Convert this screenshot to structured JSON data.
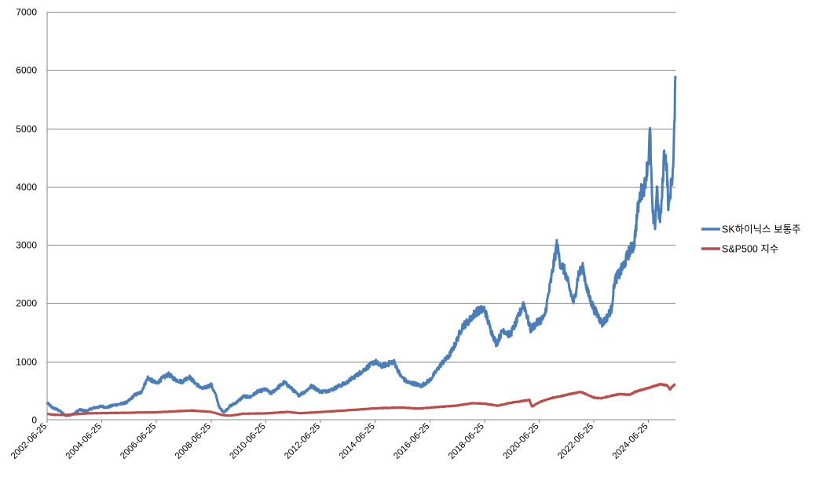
{
  "chart_data": {
    "type": "line",
    "title": "",
    "xlabel": "",
    "ylabel": "",
    "ylim": [
      0,
      7000
    ],
    "xlim": [
      "2002-06-25",
      "2025-06-20"
    ],
    "y_ticks": [
      "0",
      "1000",
      "2000",
      "3000",
      "4000",
      "5000",
      "6000",
      "7000"
    ],
    "x_ticks": [
      "2002-06-25",
      "2004-06-25",
      "2006-06-25",
      "2008-06-25",
      "2010-06-25",
      "2012-06-25",
      "2014-06-25",
      "2016-06-25",
      "2018-06-25",
      "2020-06-25",
      "2022-06-25",
      "2024-06-25"
    ],
    "grid": true,
    "legend_position": "right",
    "series": [
      {
        "name": "SK하이닉스 보통주",
        "color": "#4a7ebb",
        "points": [
          [
            "2002-06-25",
            290
          ],
          [
            "2002-09-01",
            210
          ],
          [
            "2002-12-01",
            160
          ],
          [
            "2003-03-01",
            70
          ],
          [
            "2003-06-01",
            90
          ],
          [
            "2003-09-01",
            170
          ],
          [
            "2003-12-01",
            150
          ],
          [
            "2004-03-01",
            200
          ],
          [
            "2004-06-25",
            230
          ],
          [
            "2004-09-01",
            210
          ],
          [
            "2004-12-01",
            250
          ],
          [
            "2005-03-01",
            270
          ],
          [
            "2005-06-01",
            300
          ],
          [
            "2005-09-01",
            420
          ],
          [
            "2005-12-01",
            470
          ],
          [
            "2006-03-01",
            720
          ],
          [
            "2006-06-25",
            620
          ],
          [
            "2006-09-01",
            700
          ],
          [
            "2006-12-01",
            780
          ],
          [
            "2007-03-01",
            690
          ],
          [
            "2007-06-01",
            650
          ],
          [
            "2007-09-01",
            740
          ],
          [
            "2007-12-01",
            620
          ],
          [
            "2008-03-01",
            530
          ],
          [
            "2008-06-25",
            600
          ],
          [
            "2008-09-01",
            400
          ],
          [
            "2008-10-15",
            200
          ],
          [
            "2008-12-15",
            130
          ],
          [
            "2009-03-01",
            230
          ],
          [
            "2009-06-01",
            300
          ],
          [
            "2009-09-01",
            400
          ],
          [
            "2009-12-01",
            390
          ],
          [
            "2010-03-01",
            480
          ],
          [
            "2010-06-25",
            520
          ],
          [
            "2010-09-01",
            450
          ],
          [
            "2010-12-01",
            550
          ],
          [
            "2011-03-01",
            640
          ],
          [
            "2011-06-01",
            540
          ],
          [
            "2011-09-01",
            420
          ],
          [
            "2011-12-01",
            480
          ],
          [
            "2012-03-01",
            580
          ],
          [
            "2012-06-25",
            480
          ],
          [
            "2012-09-01",
            490
          ],
          [
            "2012-12-01",
            520
          ],
          [
            "2013-03-01",
            580
          ],
          [
            "2013-06-01",
            630
          ],
          [
            "2013-09-01",
            720
          ],
          [
            "2013-12-01",
            800
          ],
          [
            "2014-03-01",
            890
          ],
          [
            "2014-06-25",
            1000
          ],
          [
            "2014-09-01",
            920
          ],
          [
            "2014-12-01",
            950
          ],
          [
            "2015-03-01",
            1000
          ],
          [
            "2015-06-01",
            750
          ],
          [
            "2015-09-01",
            640
          ],
          [
            "2015-12-01",
            620
          ],
          [
            "2016-03-01",
            580
          ],
          [
            "2016-06-25",
            680
          ],
          [
            "2016-09-01",
            800
          ],
          [
            "2016-12-01",
            970
          ],
          [
            "2017-03-01",
            1080
          ],
          [
            "2017-06-01",
            1300
          ],
          [
            "2017-09-01",
            1600
          ],
          [
            "2017-12-01",
            1700
          ],
          [
            "2018-03-01",
            1850
          ],
          [
            "2018-06-25",
            1900
          ],
          [
            "2018-09-01",
            1600
          ],
          [
            "2018-12-01",
            1300
          ],
          [
            "2019-03-01",
            1550
          ],
          [
            "2019-06-01",
            1450
          ],
          [
            "2019-09-01",
            1700
          ],
          [
            "2019-12-01",
            2000
          ],
          [
            "2020-03-01",
            1550
          ],
          [
            "2020-06-25",
            1700
          ],
          [
            "2020-09-01",
            1750
          ],
          [
            "2020-12-01",
            2400
          ],
          [
            "2021-02-15",
            3000
          ],
          [
            "2021-04-01",
            2700
          ],
          [
            "2021-06-01",
            2550
          ],
          [
            "2021-08-15",
            2200
          ],
          [
            "2021-10-01",
            2000
          ],
          [
            "2021-12-01",
            2500
          ],
          [
            "2022-02-01",
            2600
          ],
          [
            "2022-04-01",
            2200
          ],
          [
            "2022-06-25",
            1900
          ],
          [
            "2022-08-15",
            1800
          ],
          [
            "2022-10-15",
            1650
          ],
          [
            "2022-12-15",
            1750
          ],
          [
            "2023-02-15",
            1900
          ],
          [
            "2023-04-01",
            2400
          ],
          [
            "2023-06-01",
            2500
          ],
          [
            "2023-08-15",
            2700
          ],
          [
            "2023-10-15",
            2900
          ],
          [
            "2023-12-15",
            3000
          ],
          [
            "2024-02-01",
            3600
          ],
          [
            "2024-03-15",
            3900
          ],
          [
            "2024-05-01",
            4000
          ],
          [
            "2024-06-25",
            4500
          ],
          [
            "2024-07-15",
            4950
          ],
          [
            "2024-08-15",
            3600
          ],
          [
            "2024-09-15",
            3250
          ],
          [
            "2024-10-15",
            4000
          ],
          [
            "2024-11-15",
            3400
          ],
          [
            "2024-12-15",
            3650
          ],
          [
            "2025-01-20",
            4600
          ],
          [
            "2025-02-20",
            4400
          ],
          [
            "2025-03-20",
            3600
          ],
          [
            "2025-04-20",
            4000
          ],
          [
            "2025-05-20",
            4300
          ],
          [
            "2025-06-05",
            5000
          ],
          [
            "2025-06-20",
            5900
          ]
        ]
      },
      {
        "name": "S&P500 지수",
        "color": "#be4b48",
        "points": [
          [
            "2002-06-25",
            100
          ],
          [
            "2002-10-01",
            85
          ],
          [
            "2003-03-01",
            82
          ],
          [
            "2003-12-01",
            108
          ],
          [
            "2004-06-25",
            113
          ],
          [
            "2005-06-01",
            120
          ],
          [
            "2006-06-25",
            128
          ],
          [
            "2007-06-01",
            150
          ],
          [
            "2007-10-01",
            158
          ],
          [
            "2008-06-25",
            135
          ],
          [
            "2008-11-20",
            80
          ],
          [
            "2009-03-01",
            68
          ],
          [
            "2009-09-01",
            105
          ],
          [
            "2010-06-25",
            108
          ],
          [
            "2011-04-01",
            134
          ],
          [
            "2011-10-01",
            112
          ],
          [
            "2012-06-25",
            132
          ],
          [
            "2013-06-01",
            160
          ],
          [
            "2014-06-25",
            195
          ],
          [
            "2015-06-01",
            210
          ],
          [
            "2016-02-01",
            190
          ],
          [
            "2016-06-25",
            208
          ],
          [
            "2017-06-01",
            240
          ],
          [
            "2018-01-20",
            285
          ],
          [
            "2018-06-25",
            275
          ],
          [
            "2018-12-20",
            240
          ],
          [
            "2019-06-01",
            290
          ],
          [
            "2020-02-15",
            340
          ],
          [
            "2020-03-20",
            225
          ],
          [
            "2020-06-25",
            300
          ],
          [
            "2020-12-01",
            370
          ],
          [
            "2021-06-01",
            420
          ],
          [
            "2022-01-01",
            480
          ],
          [
            "2022-06-25",
            380
          ],
          [
            "2022-10-01",
            370
          ],
          [
            "2023-06-01",
            440
          ],
          [
            "2023-10-20",
            430
          ],
          [
            "2024-01-01",
            480
          ],
          [
            "2024-06-25",
            545
          ],
          [
            "2024-12-01",
            610
          ],
          [
            "2025-03-01",
            590
          ],
          [
            "2025-04-08",
            520
          ],
          [
            "2025-05-20",
            590
          ],
          [
            "2025-06-20",
            610
          ]
        ]
      }
    ]
  }
}
